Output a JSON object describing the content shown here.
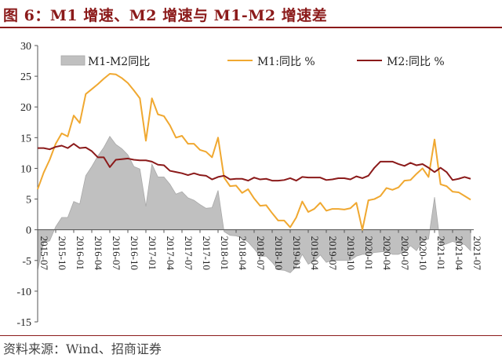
{
  "title": "图 6：M1 增速、M2 增速与 M1-M2 增速差",
  "source": "资料来源：Wind、招商证券",
  "chart_data": {
    "type": "line",
    "ylim": [
      -15,
      30
    ],
    "yticks": [
      "30",
      "25",
      "20",
      "15",
      "10",
      "5",
      "0",
      "-5",
      "-10",
      "-15"
    ],
    "grid": false,
    "legend_position": "top",
    "xtick_labels": [
      "2015-07",
      "2015-10",
      "2016-01",
      "2016-04",
      "2016-07",
      "2016-10",
      "2017-01",
      "2017-04",
      "2017-07",
      "2017-10",
      "2018-01",
      "2018-04",
      "2018-07",
      "2018-10",
      "2019-01",
      "2019-04",
      "2019-07",
      "2019-10",
      "2020-01",
      "2020-04",
      "2020-07",
      "2020-10",
      "2021-01",
      "2021-04",
      "2021-07"
    ],
    "x": [
      "2015-07",
      "2015-08",
      "2015-09",
      "2015-10",
      "2015-11",
      "2015-12",
      "2016-01",
      "2016-02",
      "2016-03",
      "2016-04",
      "2016-05",
      "2016-06",
      "2016-07",
      "2016-08",
      "2016-09",
      "2016-10",
      "2016-11",
      "2016-12",
      "2017-01",
      "2017-02",
      "2017-03",
      "2017-04",
      "2017-05",
      "2017-06",
      "2017-07",
      "2017-08",
      "2017-09",
      "2017-10",
      "2017-11",
      "2017-12",
      "2018-01",
      "2018-02",
      "2018-03",
      "2018-04",
      "2018-05",
      "2018-06",
      "2018-07",
      "2018-08",
      "2018-09",
      "2018-10",
      "2018-11",
      "2018-12",
      "2019-01",
      "2019-02",
      "2019-03",
      "2019-04",
      "2019-05",
      "2019-06",
      "2019-07",
      "2019-08",
      "2019-09",
      "2019-10",
      "2019-11",
      "2019-12",
      "2020-01",
      "2020-02",
      "2020-03",
      "2020-04",
      "2020-05",
      "2020-06",
      "2020-07",
      "2020-08",
      "2020-09",
      "2020-10",
      "2020-11",
      "2020-12",
      "2021-01",
      "2021-02",
      "2021-03",
      "2021-04",
      "2021-05",
      "2021-06",
      "2021-07"
    ],
    "series": [
      {
        "name": "M1-M2同比",
        "kind": "area",
        "color": "#c0c0c0",
        "values": [
          -6.6,
          -2.1,
          -1.8,
          0.5,
          2.0,
          2.0,
          4.6,
          4.2,
          8.8,
          10.3,
          12.0,
          13.4,
          15.2,
          13.9,
          13.2,
          12.2,
          10.3,
          9.9,
          3.8,
          10.7,
          8.6,
          8.6,
          7.4,
          5.8,
          6.2,
          5.2,
          4.8,
          4.1,
          3.5,
          3.6,
          6.4,
          -0.3,
          -0.9,
          -1.0,
          -1.3,
          -2.0,
          -3.1,
          -4.3,
          -4.3,
          -5.3,
          -6.5,
          -6.6,
          -7.0,
          -6.0,
          -4.0,
          -5.6,
          -5.1,
          -4.1,
          -5.3,
          -5.0,
          -5.0,
          -5.0,
          -5.0,
          -4.3,
          -4.0,
          -4.0,
          -3.7,
          -3.6,
          -3.5,
          -4.0,
          -4.0,
          -3.6,
          -2.6,
          -3.4,
          -1.8,
          -1.5,
          5.3,
          -2.6,
          -2.3,
          -1.9,
          -2.2,
          -2.4,
          -3.4
        ]
      },
      {
        "name": "M1:同比 %",
        "kind": "line",
        "color": "#f0a830",
        "values": [
          6.6,
          9.3,
          11.4,
          14.0,
          15.7,
          15.2,
          18.6,
          17.4,
          22.1,
          22.9,
          23.7,
          24.6,
          25.4,
          25.3,
          24.7,
          23.9,
          22.7,
          21.4,
          14.5,
          21.4,
          18.8,
          18.5,
          17.0,
          15.0,
          15.3,
          14.0,
          14.0,
          13.0,
          12.7,
          11.8,
          15.0,
          8.5,
          7.1,
          7.2,
          6.0,
          6.6,
          5.1,
          3.9,
          4.0,
          2.7,
          1.5,
          1.5,
          0.4,
          2.0,
          4.6,
          2.9,
          3.4,
          4.4,
          3.1,
          3.4,
          3.4,
          3.3,
          3.5,
          4.4,
          0.0,
          4.8,
          5.0,
          5.5,
          6.8,
          6.5,
          6.9,
          8.0,
          8.1,
          9.1,
          10.0,
          8.6,
          14.7,
          7.4,
          7.1,
          6.2,
          6.1,
          5.5,
          4.9
        ]
      },
      {
        "name": "M2:同比 %",
        "kind": "line",
        "color": "#8b1a1a",
        "values": [
          13.3,
          13.3,
          13.1,
          13.5,
          13.7,
          13.3,
          14.0,
          13.3,
          13.4,
          12.8,
          11.8,
          11.8,
          10.2,
          11.4,
          11.5,
          11.6,
          11.4,
          11.3,
          11.3,
          11.1,
          10.6,
          10.5,
          9.6,
          9.4,
          9.2,
          8.9,
          9.2,
          8.9,
          8.8,
          8.2,
          8.6,
          8.8,
          8.2,
          8.3,
          8.3,
          8.0,
          8.5,
          8.2,
          8.3,
          8.0,
          8.0,
          8.1,
          8.4,
          8.0,
          8.6,
          8.5,
          8.5,
          8.5,
          8.1,
          8.2,
          8.4,
          8.4,
          8.2,
          8.7,
          8.4,
          8.8,
          10.1,
          11.1,
          11.1,
          11.1,
          10.7,
          10.4,
          10.9,
          10.5,
          10.7,
          10.1,
          9.4,
          10.1,
          9.4,
          8.1,
          8.3,
          8.6,
          8.3
        ]
      }
    ]
  }
}
